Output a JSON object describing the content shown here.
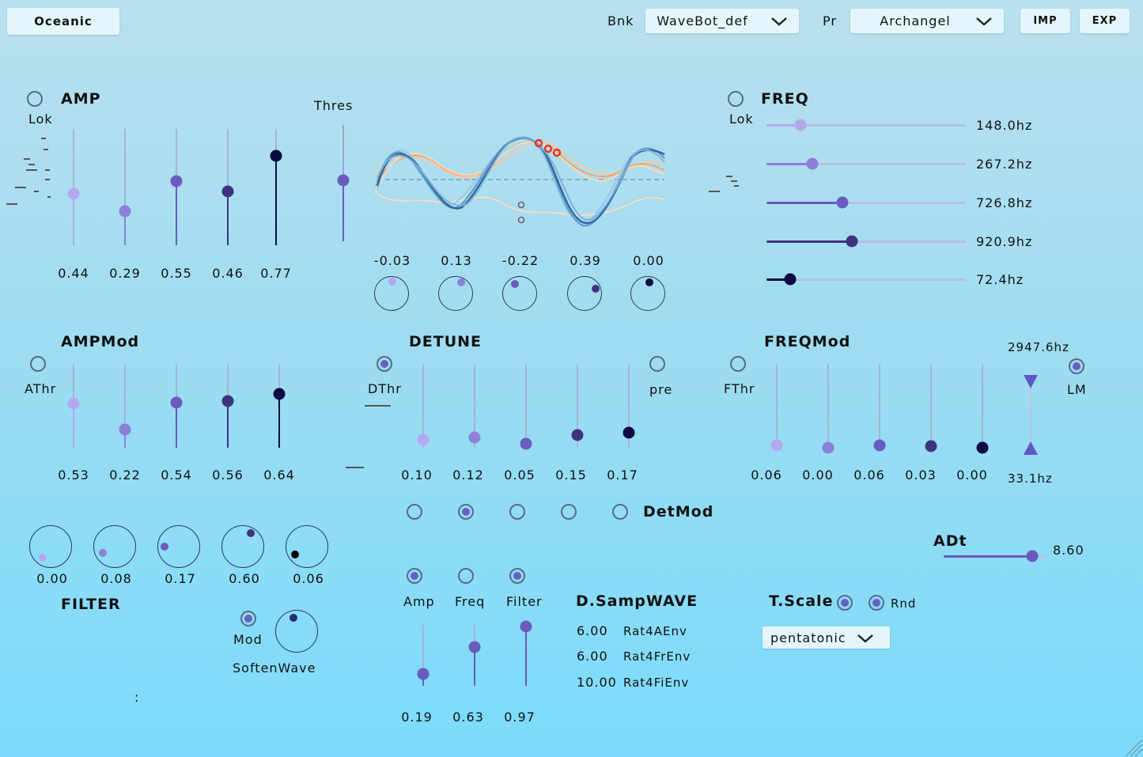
{
  "top": {
    "preset_title": "Oceanic",
    "bank_label": "Bnk",
    "bank_value": "WaveBot_def",
    "preset_label": "Pr",
    "preset_value": "Archangel",
    "imp": "IMP",
    "exp": "EXP"
  },
  "amp": {
    "title": "AMP",
    "lok": "Lok",
    "thres": "Thres",
    "values": [
      "0.44",
      "0.29",
      "0.55",
      "0.46",
      "0.77"
    ],
    "levels": [
      0.44,
      0.29,
      0.55,
      0.46,
      0.77
    ],
    "thres_level": 0.55
  },
  "knobs_top": {
    "values": [
      "-0.03",
      "0.13",
      "-0.22",
      "0.39",
      "0.00"
    ]
  },
  "freq": {
    "title": "FREQ",
    "lok": "Lok",
    "values": [
      "148.0hz",
      "267.2hz",
      "726.8hz",
      "920.9hz",
      "72.4hz"
    ],
    "levels": [
      0.17,
      0.23,
      0.38,
      0.43,
      0.12
    ]
  },
  "ampmod": {
    "title": "AMPMod",
    "athr": "AThr",
    "values": [
      "0.53",
      "0.22",
      "0.54",
      "0.56",
      "0.64"
    ],
    "levels": [
      0.53,
      0.22,
      0.54,
      0.56,
      0.64
    ]
  },
  "detune": {
    "title": "DETUNE",
    "dthr": "DThr",
    "pre": "pre",
    "values": [
      "0.10",
      "0.12",
      "0.05",
      "0.15",
      "0.17"
    ],
    "levels": [
      0.1,
      0.12,
      0.05,
      0.15,
      0.17
    ]
  },
  "freqmod": {
    "title": "FREQMod",
    "fthr": "FThr",
    "lm": "LM",
    "range_high": "2947.6hz",
    "range_low": "33.1hz",
    "values": [
      "0.06",
      "0.00",
      "0.06",
      "0.03",
      "0.00"
    ],
    "levels": [
      0.06,
      0.0,
      0.06,
      0.03,
      0.0
    ]
  },
  "detmod": {
    "title": "DetMod"
  },
  "filter": {
    "title": "FILTER",
    "values": [
      "0.00",
      "0.08",
      "0.17",
      "0.60",
      "0.06"
    ],
    "mod": "Mod",
    "soften": "SoftenWave",
    "colon": ":"
  },
  "env": {
    "amp": "Amp",
    "freq": "Freq",
    "filter": "Filter",
    "values": [
      "0.19",
      "0.63",
      "0.97"
    ],
    "levels": [
      0.19,
      0.63,
      0.97
    ]
  },
  "dsamp": {
    "title": "D.SampWAVE",
    "rows": [
      {
        "value": "6.00",
        "label": "Rat4AEnv"
      },
      {
        "value": "6.00",
        "label": "Rat4FrEnv"
      },
      {
        "value": "10.00",
        "label": "Rat4FiEnv"
      }
    ]
  },
  "adt": {
    "title": "ADt",
    "value": "8.60",
    "level": 0.86
  },
  "tscale": {
    "title": "T.Scale",
    "rnd": "Rnd",
    "scale": "pentatonic"
  },
  "colors": {
    "c1": "#b3a9f0",
    "c2": "#8c80d8",
    "c3": "#6a5bbd",
    "c4": "#3e337f",
    "c5": "#0c0a45"
  }
}
